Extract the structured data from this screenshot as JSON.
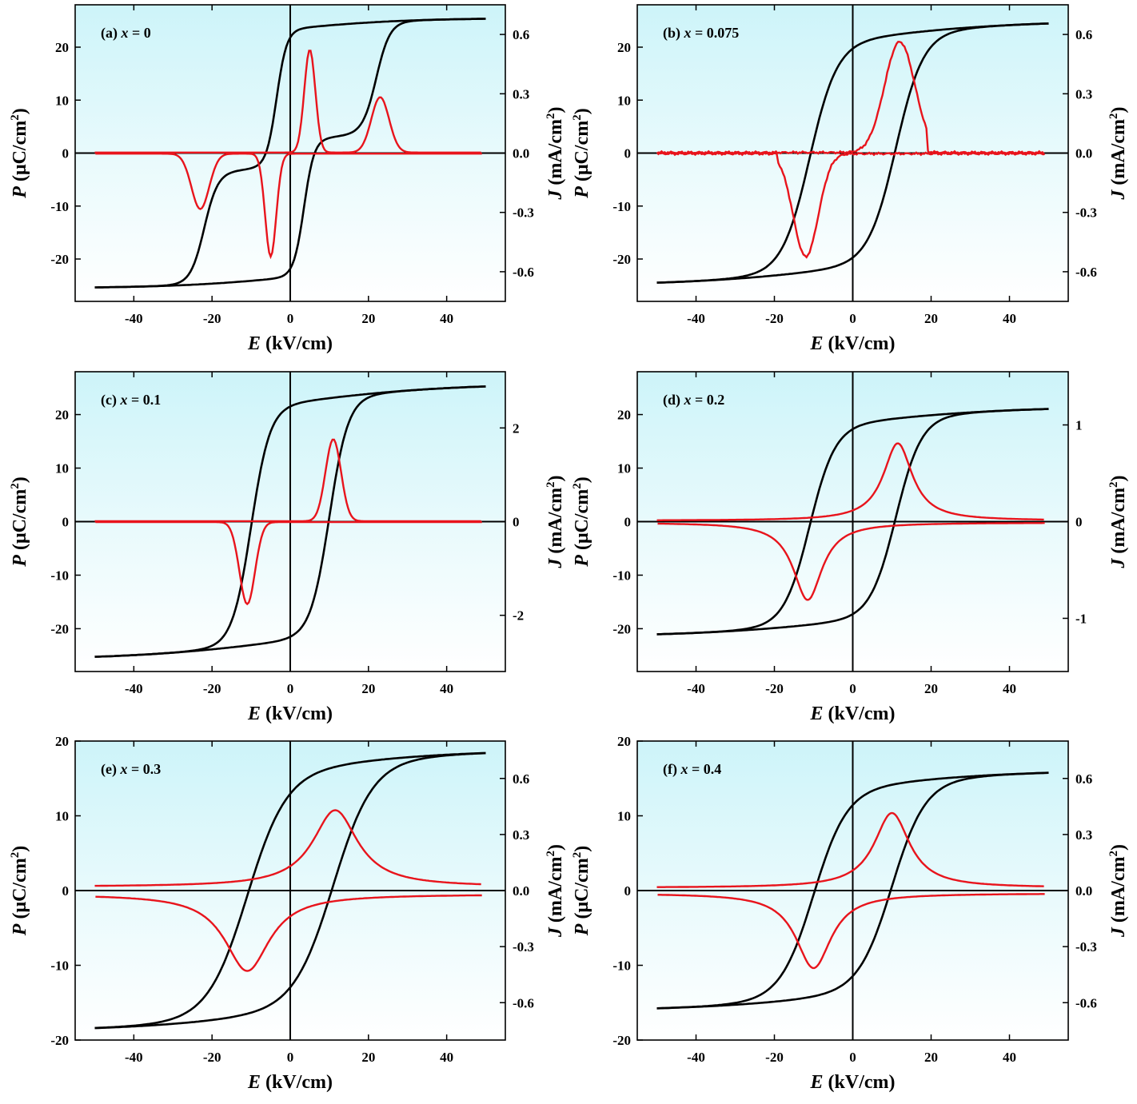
{
  "figure": {
    "colors": {
      "p_curve": "#000000",
      "j_curve": "#e8141c",
      "shade_top": "#cdf4f9",
      "shade_mid": "#ffffff"
    },
    "p_tick_labels": [
      "20",
      "10",
      "0",
      "-10",
      "-20"
    ],
    "x_tick_labels": [
      "-40",
      "-20",
      "0",
      "20",
      "40"
    ]
  },
  "chart_data": [
    {
      "type": "line",
      "panel": "(a)",
      "title": "(a) x = 0",
      "title_prefix": "(a) ",
      "title_var": "x",
      "title_eq": " = 0",
      "xlabel": {
        "sym": "E",
        "unit": " (kV/cm)"
      },
      "ylabel": {
        "sym": "P",
        "unit": "(μC/cm",
        "sup": "2",
        "close": ")"
      },
      "y2label": {
        "sym": "J",
        "unit": "(mA/cm",
        "sup": "2",
        "close": ")"
      },
      "xlim": [
        -55,
        55
      ],
      "ylim": [
        -28,
        28
      ],
      "y2lim": [
        -0.75,
        0.75
      ],
      "xticks": [
        -40,
        -20,
        0,
        20,
        40
      ],
      "yticks": [
        20,
        10,
        0,
        -10,
        -20
      ],
      "y2ticks": [
        0.6,
        0.3,
        0.0,
        -0.3,
        -0.6
      ],
      "y2tick_labels": [
        "0.6",
        "0.3",
        "0.0",
        "-0.3",
        "-0.6"
      ],
      "p_loop": {
        "Ps": 25.5,
        "Pr": 20.0,
        "Ec": 1.5,
        "w": 7.2,
        "k": 0.0,
        "kind": "double",
        "Ea": 22.0
      },
      "j_loop": {
        "base": 0.003,
        "peaks_up": [
          [
            5,
            0.52,
            2.0,
            1
          ],
          [
            23,
            0.28,
            3.2,
            1
          ]
        ],
        "peaks_down": [
          [
            -5,
            0.52,
            2.0,
            1
          ],
          [
            -23,
            0.28,
            3.2,
            1
          ]
        ]
      },
      "series": [
        {
          "name": "P-E loop",
          "axis": "left",
          "color": "#000000"
        },
        {
          "name": "J-E curve",
          "axis": "right",
          "color": "#e8141c"
        }
      ]
    },
    {
      "type": "line",
      "panel": "(b)",
      "title": "(b) x = 0.075",
      "title_prefix": "(b) ",
      "title_var": "x",
      "title_eq": " = 0.075",
      "xlabel": {
        "sym": "E",
        "unit": " (kV/cm)"
      },
      "ylabel": {
        "sym": "P",
        "unit": "(μC/cm",
        "sup": "2",
        "close": ")"
      },
      "y2label": {
        "sym": "J",
        "unit": "(mA/cm",
        "sup": "2",
        "close": ")"
      },
      "xlim": [
        -55,
        55
      ],
      "ylim": [
        -28,
        28
      ],
      "y2lim": [
        -0.75,
        0.75
      ],
      "xticks": [
        -40,
        -20,
        0,
        20,
        40
      ],
      "yticks": [
        20,
        10,
        0,
        -10,
        -20
      ],
      "y2ticks": [
        0.6,
        0.3,
        0.0,
        -0.3,
        -0.6
      ],
      "y2tick_labels": [
        "0.6",
        "0.3",
        "0.0",
        "-0.3",
        "-0.6"
      ],
      "p_loop": {
        "Ps": 25.0,
        "Pr": 19.0,
        "Ec": 11.0,
        "w": 7.0,
        "k": 0.0,
        "kind": "single"
      },
      "j_loop": {
        "base": 0.003,
        "peaks_up": [
          [
            12,
            0.56,
            5.5,
            1
          ]
        ],
        "peaks_down": [
          [
            -12,
            0.52,
            4.5,
            1
          ]
        ],
        "cutoff": 19,
        "noise": 0.006
      },
      "series": [
        {
          "name": "P-E loop",
          "axis": "left",
          "color": "#000000"
        },
        {
          "name": "J-E curve",
          "axis": "right",
          "color": "#e8141c"
        }
      ]
    },
    {
      "type": "line",
      "panel": "(c)",
      "title": "(c) x = 0.1",
      "title_prefix": "(c) ",
      "title_var": "x",
      "title_eq": " = 0.1",
      "xlabel": {
        "sym": "E",
        "unit": " (kV/cm)"
      },
      "ylabel": {
        "sym": "P",
        "unit": "(μC/cm",
        "sup": "2",
        "close": ")"
      },
      "y2label": {
        "sym": "J",
        "unit": "(mA/cm",
        "sup": "2",
        "close": ")"
      },
      "xlim": [
        -55,
        55
      ],
      "ylim": [
        -28,
        28
      ],
      "y2lim": [
        -3.2,
        3.2
      ],
      "xticks": [
        -40,
        -20,
        0,
        20,
        40
      ],
      "yticks": [
        20,
        10,
        0,
        -10,
        -20
      ],
      "y2ticks": [
        2,
        0,
        -2
      ],
      "y2tick_labels": [
        "2",
        "0",
        "-2"
      ],
      "p_loop": {
        "Ps": 25.8,
        "Pr": 21.0,
        "Ec": 10.0,
        "w": 4.8,
        "k": 0.0,
        "kind": "single"
      },
      "j_loop": {
        "base": 0.01,
        "peaks_up": [
          [
            11,
            1.75,
            2.8,
            1
          ]
        ],
        "peaks_down": [
          [
            -11,
            1.75,
            2.8,
            1
          ]
        ]
      },
      "series": [
        {
          "name": "P-E loop",
          "axis": "left",
          "color": "#000000"
        },
        {
          "name": "J-E curve",
          "axis": "right",
          "color": "#e8141c"
        }
      ]
    },
    {
      "type": "line",
      "panel": "(d)",
      "title": "(d) x = 0.2",
      "title_prefix": "(d) ",
      "title_var": "x",
      "title_eq": " = 0.2",
      "xlabel": {
        "sym": "E",
        "unit": " (kV/cm)"
      },
      "ylabel": {
        "sym": "P",
        "unit": "(μC/cm",
        "sup": "2",
        "close": ")"
      },
      "y2label": {
        "sym": "J",
        "unit": "(mA/cm",
        "sup": "2",
        "close": ")"
      },
      "xlim": [
        -55,
        55
      ],
      "ylim": [
        -28,
        28
      ],
      "y2lim": [
        -1.55,
        1.55
      ],
      "xticks": [
        -40,
        -20,
        0,
        20,
        40
      ],
      "yticks": [
        20,
        10,
        0,
        -10,
        -20
      ],
      "y2ticks": [
        1,
        0,
        -1
      ],
      "y2tick_labels": [
        "1",
        "0",
        "-1"
      ],
      "p_loop": {
        "Ps": 21.5,
        "Pr": 16.0,
        "Ec": 11.0,
        "w": 6.5,
        "k": 0.0,
        "kind": "single"
      },
      "j_loop": {
        "base": 0.01,
        "peaks_up": [
          [
            11.5,
            0.8,
            4.5,
            2
          ]
        ],
        "peaks_down": [
          [
            -11.5,
            0.8,
            4.5,
            2
          ]
        ]
      },
      "series": [
        {
          "name": "P-E loop",
          "axis": "left",
          "color": "#000000"
        },
        {
          "name": "J-E curve",
          "axis": "right",
          "color": "#e8141c"
        }
      ]
    },
    {
      "type": "line",
      "panel": "(e)",
      "title": "(e) x = 0.3",
      "title_prefix": "(e) ",
      "title_var": "x",
      "title_eq": " = 0.3",
      "xlabel": {
        "sym": "E",
        "unit": " (kV/cm)"
      },
      "ylabel": {
        "sym": "P",
        "unit": "(μC/cm",
        "sup": "2",
        "close": ")"
      },
      "y2label": {
        "sym": "J",
        "unit": "(mA/cm",
        "sup": "2",
        "close": ")"
      },
      "xlim": [
        -55,
        55
      ],
      "ylim": [
        -20,
        20
      ],
      "y2lim": [
        -0.8,
        0.8
      ],
      "xticks": [
        -40,
        -20,
        0,
        20,
        40
      ],
      "yticks": [
        20,
        10,
        0,
        -10,
        -20
      ],
      "y2ticks": [
        0.6,
        0.3,
        0.0,
        -0.3,
        -0.6
      ],
      "y2tick_labels": [
        "0.6",
        "0.3",
        "0.0",
        "-0.3",
        "-0.6"
      ],
      "p_loop": {
        "Ps": 18.8,
        "Pr": 13.0,
        "Ec": 11.0,
        "w": 10.0,
        "k": 0.0,
        "kind": "single"
      },
      "j_loop": {
        "base": 0.02,
        "peaks_up": [
          [
            11.5,
            0.41,
            7.0,
            2
          ]
        ],
        "peaks_down": [
          [
            -11,
            0.41,
            7.0,
            2
          ]
        ]
      },
      "series": [
        {
          "name": "P-E loop",
          "axis": "left",
          "color": "#000000"
        },
        {
          "name": "J-E curve",
          "axis": "right",
          "color": "#e8141c"
        }
      ]
    },
    {
      "type": "line",
      "panel": "(f)",
      "title": "(f) x = 0.4",
      "title_prefix": "(f) ",
      "title_var": "x",
      "title_eq": " = 0.4",
      "xlabel": {
        "sym": "E",
        "unit": " (kV/cm)"
      },
      "ylabel": {
        "sym": "P",
        "unit": "(μC/cm",
        "sup": "2",
        "close": ")"
      },
      "y2label": {
        "sym": "J",
        "unit": "(mA/cm",
        "sup": "2",
        "close": ")"
      },
      "xlim": [
        -55,
        55
      ],
      "ylim": [
        -20,
        20
      ],
      "y2lim": [
        -0.8,
        0.8
      ],
      "xticks": [
        -40,
        -20,
        0,
        20,
        40
      ],
      "yticks": [
        20,
        10,
        0,
        -10,
        -20
      ],
      "y2ticks": [
        0.6,
        0.3,
        0.0,
        -0.3,
        -0.6
      ],
      "y2tick_labels": [
        "0.6",
        "0.3",
        "0.0",
        "-0.3",
        "-0.6"
      ],
      "p_loop": {
        "Ps": 16.1,
        "Pr": 11.0,
        "Ec": 10.0,
        "w": 8.5,
        "k": 0.0,
        "kind": "single"
      },
      "j_loop": {
        "base": 0.015,
        "peaks_up": [
          [
            10,
            0.4,
            5.5,
            2
          ]
        ],
        "peaks_down": [
          [
            -10,
            0.4,
            5.5,
            2
          ]
        ]
      },
      "series": [
        {
          "name": "P-E loop",
          "axis": "left",
          "color": "#000000"
        },
        {
          "name": "J-E curve",
          "axis": "right",
          "color": "#e8141c"
        }
      ]
    }
  ]
}
